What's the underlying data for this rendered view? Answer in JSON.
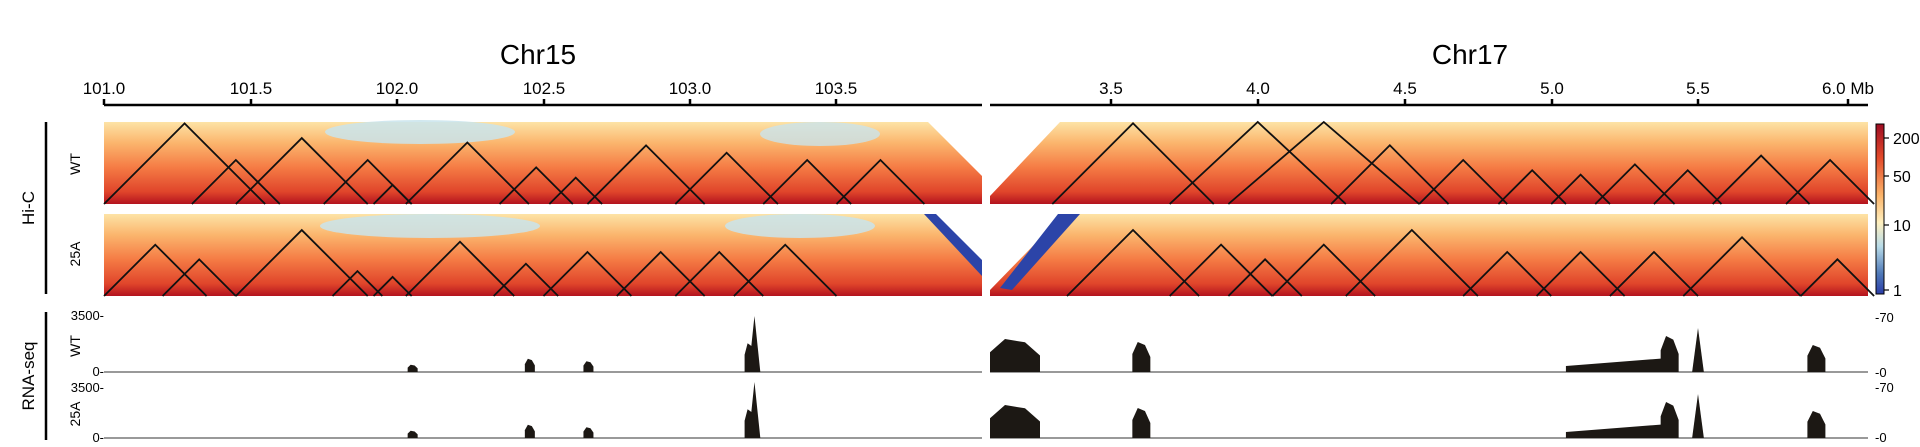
{
  "chromosomes": [
    {
      "name": "Chr15",
      "ticks": [
        "101.0",
        "101.5",
        "102.0",
        "102.5",
        "103.0",
        "103.5"
      ]
    },
    {
      "name": "Chr17",
      "ticks": [
        "3.5",
        "4.0",
        "4.5",
        "5.0",
        "5.5",
        "6.0 Mb"
      ]
    }
  ],
  "tracks": {
    "hic_label": "Hi-C",
    "rnaseq_label": "RNA-seq",
    "samples": [
      "WT",
      "25A"
    ]
  },
  "rnaseq_axis": {
    "left_max": "3500-",
    "left_min": "0-",
    "right_max": "-70",
    "right_min": "-0"
  },
  "colorbar": {
    "labels": [
      "200",
      "50",
      "10",
      "1"
    ],
    "colors": [
      "#9e0d23",
      "#e34a2a",
      "#fbb46a",
      "#fff0bf",
      "#b8dbe8",
      "#4f79b8",
      "#2b3da8"
    ]
  },
  "chart_data": {
    "type": "heatmap",
    "title": "",
    "description": "Hi-C contact maps with TAD triangles and RNA-seq coverage for WT and 25A on Chr15 and Chr17",
    "x_chr15": {
      "range": [
        101.0,
        103.95
      ],
      "unit": "Mb"
    },
    "x_chr17": {
      "range": [
        3.1,
        6.1
      ],
      "unit": "Mb"
    },
    "hic_color_scale": {
      "min": 1,
      "max": 200,
      "log": true
    },
    "rnaseq_scale": {
      "chr15": [
        0,
        3500
      ],
      "chr17": [
        0,
        70
      ]
    },
    "tads": {
      "chr15_WT": [
        [
          101.0,
          101.55
        ],
        [
          101.3,
          101.6
        ],
        [
          101.45,
          101.9
        ],
        [
          101.75,
          102.05
        ],
        [
          101.92,
          102.05
        ],
        [
          102.03,
          102.45
        ],
        [
          102.35,
          102.6
        ],
        [
          102.52,
          102.7
        ],
        [
          102.65,
          103.05
        ],
        [
          102.95,
          103.3
        ],
        [
          103.25,
          103.55
        ],
        [
          103.5,
          103.8
        ]
      ],
      "chr15_25A": [
        [
          101.0,
          101.35
        ],
        [
          101.2,
          101.45
        ],
        [
          101.45,
          101.9
        ],
        [
          101.78,
          101.95
        ],
        [
          101.92,
          102.05
        ],
        [
          102.03,
          102.4
        ],
        [
          102.33,
          102.55
        ],
        [
          102.5,
          102.8
        ],
        [
          102.75,
          103.05
        ],
        [
          102.95,
          103.25
        ],
        [
          103.15,
          103.5
        ]
      ],
      "chr17_WT": [
        [
          3.3,
          3.85
        ],
        [
          3.7,
          4.3
        ],
        [
          3.9,
          4.55
        ],
        [
          4.25,
          4.65
        ],
        [
          4.55,
          4.85
        ],
        [
          4.82,
          5.05
        ],
        [
          5.0,
          5.2
        ],
        [
          5.15,
          5.42
        ],
        [
          5.35,
          5.58
        ],
        [
          5.55,
          5.88
        ],
        [
          5.8,
          6.1
        ]
      ],
      "chr17_25A": [
        [
          3.35,
          3.8
        ],
        [
          3.7,
          4.05
        ],
        [
          3.9,
          4.15
        ],
        [
          4.05,
          4.4
        ],
        [
          4.3,
          4.75
        ],
        [
          4.7,
          5.0
        ],
        [
          4.95,
          5.25
        ],
        [
          5.2,
          5.5
        ],
        [
          5.45,
          5.85
        ],
        [
          5.85,
          6.1
        ]
      ]
    },
    "rnaseq_peaks": {
      "chr15": [
        [
          102.05,
          0.12
        ],
        [
          102.45,
          0.22
        ],
        [
          102.65,
          0.18
        ],
        [
          103.2,
          0.48
        ]
      ],
      "chr17": [
        [
          3.15,
          0.55
        ],
        [
          3.6,
          0.5
        ],
        [
          5.4,
          0.6
        ],
        [
          5.9,
          0.45
        ]
      ]
    }
  }
}
